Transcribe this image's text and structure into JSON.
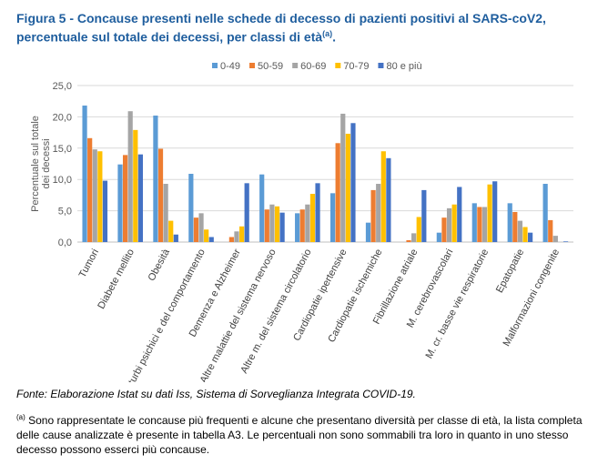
{
  "title": "Figura 5 - Concause presenti nelle schede di decesso di pazienti positivi al SARS-coV2, percentuale sul totale dei decessi, per classi di età",
  "title_sup": "(a)",
  "fonte": "Fonte: Elaborazione Istat su dati Iss, Sistema di Sorveglianza Integrata COVID-19.",
  "note_sup": "(a)",
  "note": " Sono rappresentate le concause più frequenti e alcune che presentano diversità per classe di età, la lista completa delle cause analizzate è presente in tabella A3. Le percentuali non sono sommabili tra loro in quanto in uno stesso decesso possono esserci più concause.",
  "chart_data": {
    "type": "bar",
    "ylabel": "Percentuale sul totale dei decessi",
    "ylim": [
      0,
      25
    ],
    "yticks": [
      "0,0",
      "5,0",
      "10,0",
      "15,0",
      "20,0",
      "25,0"
    ],
    "grid": true,
    "legend_position": "top",
    "categories": [
      "Tumori",
      "Diabete mellito",
      "Obesità",
      "Altri disturbi psichici e del comportamento",
      "Demenza e Alzheimer",
      "Altre malattie del sistema nervoso",
      "Altre m. del sistema circolatorio",
      "Cardiopatie ipertensive",
      "Cardiopatie ischemiche",
      "Fibrillazione atriale",
      "M. cerebrovascolari",
      "M. cr. basse vie respiratorie",
      "Epatopatie",
      "Malformazioni congenite"
    ],
    "series": [
      {
        "name": "0-49",
        "color": "#5B9BD5",
        "values": [
          21.8,
          12.4,
          20.2,
          10.9,
          0,
          10.8,
          4.6,
          7.8,
          3.1,
          0,
          1.5,
          6.2,
          6.2,
          9.3
        ]
      },
      {
        "name": "50-59",
        "color": "#ED7D31",
        "values": [
          16.6,
          13.9,
          14.9,
          3.9,
          0.8,
          5.2,
          5.2,
          15.8,
          8.3,
          0.3,
          3.9,
          5.6,
          4.8,
          3.5
        ]
      },
      {
        "name": "60-69",
        "color": "#A5A5A5",
        "values": [
          14.8,
          20.9,
          9.3,
          4.6,
          1.7,
          6.0,
          6.0,
          20.5,
          9.3,
          1.4,
          5.4,
          5.6,
          3.4,
          1.0
        ]
      },
      {
        "name": "70-79",
        "color": "#FFC000",
        "values": [
          14.5,
          17.9,
          3.4,
          2.0,
          2.5,
          5.7,
          7.7,
          17.3,
          14.5,
          4.0,
          6.0,
          9.2,
          2.4,
          0
        ]
      },
      {
        "name": "80 e più",
        "color": "#4472C4",
        "values": [
          9.8,
          14.0,
          1.2,
          0.8,
          9.4,
          4.7,
          9.4,
          19.0,
          13.4,
          8.3,
          8.8,
          9.7,
          1.5,
          0.1
        ]
      }
    ]
  }
}
